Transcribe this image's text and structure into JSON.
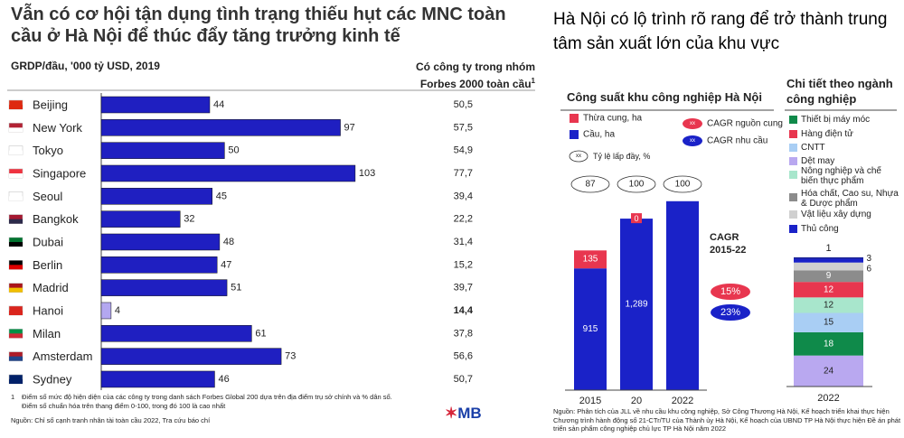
{
  "chart_data": [
    {
      "type": "bar",
      "orientation": "horizontal",
      "title": "Vẫn có cơ hội tận dụng tình trạng thiếu hụt các MNC toàn cầu ở Hà Nội để thúc đẩy tăng trưởng kinh tế",
      "axis_label": "GRDP/đầu, '000 tỷ USD, 2019",
      "categories": [
        "Beijing",
        "New York",
        "Tokyo",
        "Singapore",
        "Seoul",
        "Bangkok",
        "Dubai",
        "Berlin",
        "Madrid",
        "Hanoi",
        "Milan",
        "Amsterdam",
        "Sydney"
      ],
      "values": [
        44,
        97,
        50,
        103,
        45,
        32,
        48,
        47,
        51,
        4,
        61,
        73,
        46
      ],
      "color": "#1f1fc1",
      "highlight_category": "Hanoi",
      "highlight_color": "#b3a7f0",
      "xlim": [
        0,
        110
      ],
      "table_column": {
        "header": "Có công ty trong nhóm Forbes 2000 toàn cầu",
        "cells": [
          "50,5",
          "57,5",
          "54,9",
          "77,7",
          "39,4",
          "22,2",
          "31,4",
          "15,2",
          "39,7",
          "14,4",
          "37,8",
          "56,6",
          "50,7"
        ]
      },
      "footnote_marker": "1",
      "footnotes": [
        "Điểm số mức độ hiện diện của các công ty trong danh sách Forbes Global 200 dựa trên địa điểm trụ sở chính và % dân số.",
        "Điểm số chuẩn hóa trên thang điểm 0-100, trong đó 100 là cao nhất"
      ],
      "source": "Nguồn: Chỉ số cạnh tranh nhân tài toàn cầu 2022, Tra cứu báo chí",
      "logo": "MB"
    },
    {
      "type": "stacked_bar",
      "panel_title": "Hà Nội có lộ trình rõ rang để trở thành trung tâm sản xuất lớn của khu vực",
      "title": "Công suất khu công nghiệp Hà Nội",
      "categories": [
        "2015",
        "20",
        "2022"
      ],
      "series": [
        {
          "name": "Thừa cung, ha",
          "color": "#e8364f",
          "values": [
            135,
            0,
            null
          ]
        },
        {
          "name": "Cầu, ha",
          "color": "#1a22c8",
          "values": [
            915,
            1289,
            1420
          ],
          "value_labels": [
            "915",
            "1,289",
            null
          ]
        }
      ],
      "ylim": [
        0,
        1500
      ],
      "fill_rate": {
        "name": "Tỷ lệ lấp đầy, %",
        "values": [
          87,
          100,
          100
        ]
      },
      "legend_icon_text": "xx",
      "cagr": {
        "title": "CAGR 2015-22",
        "series": [
          {
            "name": "CAGR nguồn cung",
            "color": "#e8364f",
            "value": 15,
            "label": "15%"
          },
          {
            "name": "CAGR nhu cầu",
            "color": "#1a22c8",
            "value": 23,
            "label": "23%"
          }
        ]
      },
      "source": "Nguồn: Phân tích của JLL về nhu cầu khu công nghiệp, Sở Công Thương Hà Nội, Kế hoạch triển khai thực hiện Chương trình hành động số 21-CTr/TU của Thành ủy Hà Nội, Kế hoạch của UBND TP Hà Nội thực hiện Đề án phát triển sản phẩm công nghiệp chủ lực TP Hà Nội năm 2022"
    },
    {
      "type": "stacked_bar",
      "title": "Chi tiết theo ngành công nghiệp",
      "categories": [
        "2022"
      ],
      "series": [
        {
          "name": "Thiết bị máy móc",
          "color": "#0f8a4a",
          "values": [
            18
          ]
        },
        {
          "name": "Hàng điện tử",
          "color": "#e8364f",
          "values": [
            12
          ]
        },
        {
          "name": "CNTT",
          "color": "#a9cef4",
          "values": [
            15
          ]
        },
        {
          "name": "Dệt may",
          "color": "#b9a8f0",
          "values": [
            24
          ]
        },
        {
          "name": "Nông nghiệp và chế biến thực phẩm",
          "color": "#a8e6cc",
          "values": [
            12
          ]
        },
        {
          "name": "Hóa chất, Cao su, Nhựa & Dược phẩm",
          "color": "#8c8c8c",
          "values": [
            9
          ]
        },
        {
          "name": "Vật liệu xây dựng",
          "color": "#d0d0d0",
          "values": [
            6
          ]
        },
        {
          "name": "Thủ công",
          "color": "#1a22c8",
          "values": [
            3
          ]
        },
        {
          "color": "#10188f",
          "values": [
            1
          ]
        }
      ],
      "ylim": [
        0,
        100
      ]
    }
  ]
}
